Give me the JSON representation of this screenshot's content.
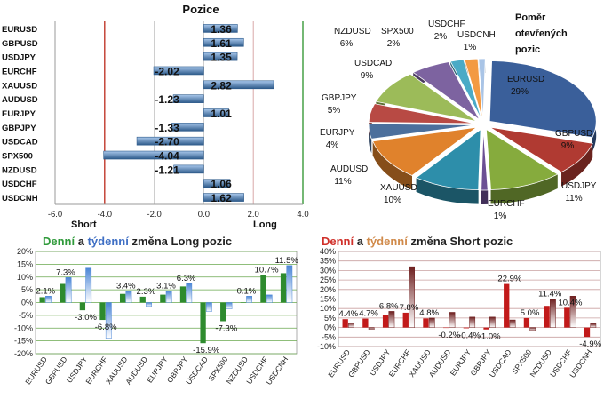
{
  "chart_data": [
    {
      "type": "bar",
      "orientation": "horizontal",
      "title": "Pozice",
      "categories": [
        "EURUSD",
        "GBPUSD",
        "USDJPY",
        "EURCHF",
        "XAUUSD",
        "AUDUSD",
        "EURJPY",
        "GBPJPY",
        "USDCAD",
        "SPX500",
        "NZDUSD",
        "USDCHF",
        "USDCNH"
      ],
      "values": [
        1.36,
        1.61,
        1.35,
        -2.02,
        2.82,
        -1.23,
        1.01,
        -1.33,
        -2.7,
        -4.04,
        -1.21,
        1.06,
        1.62
      ],
      "value_labels": [
        "1.36",
        "1.61",
        "1.35",
        "-2.02",
        "2.82",
        "-1.23",
        "1.01",
        "-1.33",
        "-2.70",
        "-4.04",
        "-1.21",
        "1.06",
        "1.62"
      ],
      "xlim": [
        -6.0,
        4.0
      ],
      "xticks": [
        "-6.0",
        "-4.0",
        "-2.0",
        "0.0",
        "2.0",
        "4.0"
      ],
      "short_label": "Short",
      "long_label": "Long",
      "colors": {
        "short_line": "#c0392b",
        "long_line": "#3a9a3a",
        "bar_dark": "#2d5a8a",
        "bar_light": "#a9c8ec"
      }
    },
    {
      "type": "pie",
      "title": "Poměr otevřených pozic",
      "slices": [
        {
          "label": "EURUSD",
          "value": 29,
          "text": "29%",
          "color": "#3a5f9a"
        },
        {
          "label": "GBPUSD",
          "value": 9,
          "text": "9%",
          "color": "#b03a32"
        },
        {
          "label": "USDJPY",
          "value": 11,
          "text": "11%",
          "color": "#86ab3d"
        },
        {
          "label": "EURCHF",
          "value": 1,
          "text": "1%",
          "color": "#6c4f94"
        },
        {
          "label": "XAUUSD",
          "value": 10,
          "text": "10%",
          "color": "#2d8eaa"
        },
        {
          "label": "AUDUSD",
          "value": 11,
          "text": "11%",
          "color": "#e0822c"
        },
        {
          "label": "EURJPY",
          "value": 4,
          "text": "4%",
          "color": "#4c6f9c"
        },
        {
          "label": "GBPJPY",
          "value": 5,
          "text": "5%",
          "color": "#b84a44"
        },
        {
          "label": "USDCAD",
          "value": 9,
          "text": "9%",
          "color": "#9cbb59"
        },
        {
          "label": "NZDUSD",
          "value": 6,
          "text": "6%",
          "color": "#7d63a0"
        },
        {
          "label": "SPX500",
          "value": 2,
          "text": "2%",
          "color": "#4aaac6"
        },
        {
          "label": "USDCHF",
          "value": 2,
          "text": "2%",
          "color": "#f39a42"
        },
        {
          "label": "USDCNH",
          "value": 1,
          "text": "1%",
          "color": "#a9c4e6"
        }
      ]
    },
    {
      "type": "bar",
      "title_parts": [
        "Denní",
        " a ",
        "týdenní",
        " změna Long pozic"
      ],
      "title_colors": [
        "#2f9a3a",
        "#222222",
        "#3f6fc4",
        "#222222"
      ],
      "categories": [
        "EURUSD",
        "GBPUSD",
        "USDJPY",
        "EURCHF",
        "XAUUSD",
        "AUDUSD",
        "EURJPY",
        "GBPJPY",
        "USDCAD",
        "SPX500",
        "NZDUSD",
        "USDCHF",
        "USDCNH"
      ],
      "series": [
        {
          "name": "Denní",
          "values": [
            2.1,
            7.3,
            -3.0,
            -6.8,
            3.4,
            2.3,
            3.1,
            6.3,
            -15.9,
            -7.3,
            0.1,
            10.7,
            11.5
          ],
          "color": "#2e8b2e"
        },
        {
          "name": "Týdenní",
          "values": [
            2.5,
            9.8,
            13.5,
            -14.0,
            4.5,
            -1.5,
            4.5,
            7.5,
            -3.5,
            -2.5,
            2.5,
            3.0,
            14.5
          ],
          "color": "#4b86d6"
        }
      ],
      "data_labels": [
        "2.1%",
        "7.3%",
        "-3.0%",
        "-6.8%",
        "3.4%",
        "2.3%",
        "3.1%",
        "6.3%",
        "-15.9%",
        "-7.3%",
        "0.1%",
        "10.7%",
        "11.5%"
      ],
      "ylim": [
        -20,
        20
      ],
      "yticks": [
        "20%",
        "15%",
        "10%",
        "5%",
        "0%",
        "-5%",
        "-10%",
        "-15%",
        "-20%"
      ]
    },
    {
      "type": "bar",
      "title_parts": [
        "Denní",
        " a ",
        "týdenní",
        " změna Short pozic"
      ],
      "title_colors": [
        "#d0302a",
        "#222222",
        "#d08a4a",
        "#222222"
      ],
      "categories": [
        "EURUSD",
        "GBPUSD",
        "USDJPY",
        "EURCHF",
        "XAUUSD",
        "AUDUSD",
        "EURJPY",
        "GBPJPY",
        "USDCAD",
        "SPX500",
        "NZDUSD",
        "USDCHF",
        "USDCNH"
      ],
      "series": [
        {
          "name": "Denní",
          "values": [
            4.4,
            4.7,
            6.8,
            7.8,
            4.8,
            -0.2,
            -0.4,
            -1.0,
            22.9,
            5.0,
            11.4,
            10.4,
            -4.9
          ],
          "color": "#c21a1a"
        },
        {
          "name": "Týdenní",
          "values": [
            2.5,
            -1.0,
            8.5,
            32.0,
            5.0,
            8.0,
            5.5,
            5.5,
            4.0,
            -1.5,
            15.0,
            16.5,
            2.0
          ],
          "color": "#6e1f1f"
        }
      ],
      "data_labels": [
        "4.4%",
        "4.7%",
        "6.8%",
        "7.8%",
        "4.8%",
        "-0.2%",
        "-0.4%",
        "-1.0%",
        "22.9%",
        "5.0%",
        "11.4%",
        "10.4%",
        "-4.9%"
      ],
      "ylim": [
        -10,
        40
      ],
      "yticks": [
        "40%",
        "35%",
        "30%",
        "25%",
        "20%",
        "15%",
        "10%",
        "5%",
        "0%",
        "-5%",
        "-10%"
      ]
    }
  ]
}
